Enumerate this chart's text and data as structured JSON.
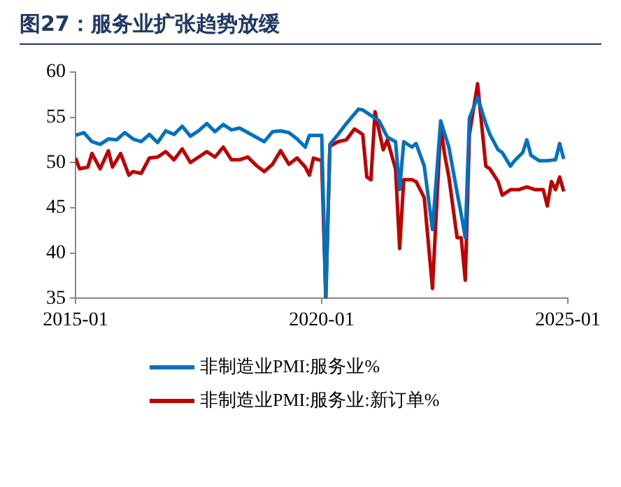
{
  "chart_data": {
    "type": "line",
    "title": "图27：服务业扩张趋势放缓",
    "xlim": [
      "2015-01",
      "2025-01"
    ],
    "xticks": [
      "2015-01",
      "2020-01",
      "2025-01"
    ],
    "ylim": [
      35,
      60
    ],
    "yticks": [
      35,
      40,
      45,
      50,
      55,
      60
    ],
    "grid": false,
    "legend": "bottom",
    "marker": "none",
    "line_style": "solid",
    "series": [
      {
        "name": "非制造业PMI:服务业%",
        "color": "#0070c0",
        "x": [
          "2015-01",
          "2015-03",
          "2015-05",
          "2015-07",
          "2015-09",
          "2015-11",
          "2016-01",
          "2016-03",
          "2016-05",
          "2016-07",
          "2016-09",
          "2016-11",
          "2017-01",
          "2017-03",
          "2017-05",
          "2017-07",
          "2017-09",
          "2017-11",
          "2018-01",
          "2018-03",
          "2018-05",
          "2018-07",
          "2018-09",
          "2018-11",
          "2019-01",
          "2019-03",
          "2019-05",
          "2019-07",
          "2019-09",
          "2019-10",
          "2019-12",
          "2020-01",
          "2020-02",
          "2020-03",
          "2020-05",
          "2020-07",
          "2020-10",
          "2020-11",
          "2021-02",
          "2021-03",
          "2021-05",
          "2021-07",
          "2021-08",
          "2021-09",
          "2021-11",
          "2021-12",
          "2022-02",
          "2022-04",
          "2022-06",
          "2022-08",
          "2022-10",
          "2022-11",
          "2022-12",
          "2023-01",
          "2023-03",
          "2023-05",
          "2023-06",
          "2023-08",
          "2023-09",
          "2023-11",
          "2023-12",
          "2024-02",
          "2024-03",
          "2024-04",
          "2024-06",
          "2024-08",
          "2024-10",
          "2024-11",
          "2024-12"
        ],
        "values": [
          53.0,
          53.3,
          52.3,
          52.0,
          52.6,
          52.5,
          53.3,
          52.6,
          52.3,
          53.1,
          52.2,
          53.5,
          53.1,
          54.0,
          52.9,
          53.5,
          54.3,
          53.4,
          54.2,
          53.6,
          53.8,
          53.3,
          52.8,
          52.3,
          53.4,
          53.5,
          53.3,
          52.6,
          51.7,
          53.0,
          53.0,
          53.0,
          35,
          52.0,
          53.1,
          54.3,
          55.9,
          55.8,
          54.9,
          54.6,
          52.8,
          52.3,
          47,
          52.3,
          51.7,
          52.1,
          49.6,
          42.6,
          54.6,
          51.7,
          46.7,
          44.3,
          41.7,
          54.9,
          57.2,
          54.3,
          53.1,
          51.4,
          51.1,
          49.6,
          50.2,
          51.1,
          52.5,
          50.8,
          50.2,
          50.2,
          50.3,
          52.1,
          50.4
        ]
      },
      {
        "name": "非制造业PMI:服务业:新订单%",
        "color": "#c00000",
        "x": [
          "2015-01",
          "2015-02",
          "2015-04",
          "2015-05",
          "2015-07",
          "2015-09",
          "2015-10",
          "2015-12",
          "2016-02",
          "2016-03",
          "2016-05",
          "2016-07",
          "2016-09",
          "2016-11",
          "2017-01",
          "2017-03",
          "2017-05",
          "2017-07",
          "2017-09",
          "2017-11",
          "2018-01",
          "2018-03",
          "2018-05",
          "2018-07",
          "2018-09",
          "2018-11",
          "2019-01",
          "2019-03",
          "2019-05",
          "2019-07",
          "2019-09",
          "2019-10",
          "2019-11",
          "2020-01",
          "2020-02",
          "2020-03",
          "2020-05",
          "2020-07",
          "2020-09",
          "2020-11",
          "2020-12",
          "2021-01",
          "2021-02",
          "2021-04",
          "2021-05",
          "2021-07",
          "2021-08",
          "2021-09",
          "2021-11",
          "2021-12",
          "2022-02",
          "2022-04",
          "2022-06",
          "2022-07",
          "2022-08",
          "2022-10",
          "2022-11",
          "2022-12",
          "2023-01",
          "2023-03",
          "2023-05",
          "2023-06",
          "2023-08",
          "2023-09",
          "2023-11",
          "2024-01",
          "2024-03",
          "2024-05",
          "2024-07",
          "2024-08",
          "2024-09",
          "2024-10",
          "2024-11",
          "2024-12"
        ],
        "values": [
          50.5,
          49.3,
          49.5,
          51.0,
          49.3,
          51.3,
          49.5,
          51.0,
          48.6,
          49.0,
          48.8,
          50.5,
          50.6,
          51.2,
          50.3,
          51.5,
          50.0,
          50.6,
          51.2,
          50.6,
          51.7,
          50.3,
          50.3,
          50.6,
          49.7,
          49.0,
          49.8,
          51.3,
          49.8,
          50.5,
          49.5,
          48.6,
          50.5,
          50.2,
          35,
          51.8,
          52.3,
          52.5,
          53.7,
          53.1,
          48.4,
          48.1,
          55.6,
          51.4,
          52.5,
          49.3,
          40.5,
          48.1,
          48.1,
          47.9,
          46.1,
          36.1,
          54.0,
          50.8,
          48.4,
          41.7,
          41.7,
          37.0,
          53.1,
          58.7,
          49.6,
          49.3,
          47.9,
          46.4,
          47.0,
          47.0,
          47.3,
          47.0,
          47.0,
          45.2,
          47.9,
          47.0,
          48.4,
          46.8
        ]
      }
    ]
  }
}
